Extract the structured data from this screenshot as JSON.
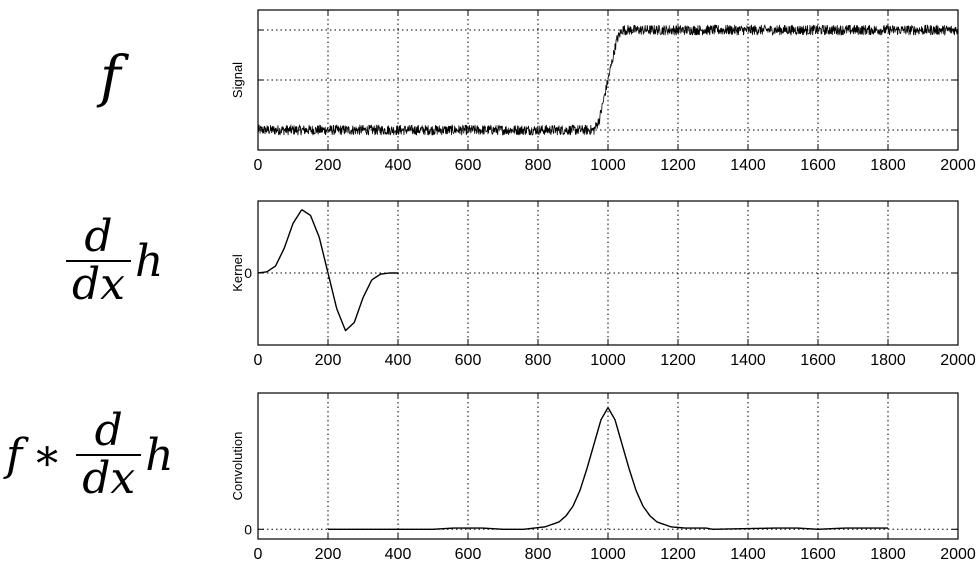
{
  "formulas": {
    "f1": {
      "main": "f"
    },
    "f2": {
      "num": "d",
      "den": "dx",
      "tail": "h"
    },
    "f3": {
      "head": "f",
      "op": "∗",
      "num": "d",
      "den": "dx",
      "tail": "h"
    }
  },
  "chart_data": [
    {
      "type": "line",
      "title": "",
      "xlabel": "",
      "ylabel": "Signal",
      "xlim": [
        0,
        2000
      ],
      "ylim": [
        -0.2,
        1.2
      ],
      "xticks": [
        0,
        200,
        400,
        600,
        800,
        1000,
        1200,
        1400,
        1600,
        1800,
        2000
      ],
      "xtick_labels": [
        "0",
        "200",
        "400",
        "600",
        "800",
        "1000",
        "1200",
        "1400",
        "1600",
        "1800",
        "2000"
      ],
      "yticks": [
        0,
        0.5,
        1
      ],
      "ytick_labels": [
        "",
        "",
        ""
      ],
      "grid": true,
      "x": [
        0,
        250,
        500,
        750,
        960,
        975,
        1000,
        1025,
        1040,
        1250,
        1500,
        1750,
        2000
      ],
      "values": [
        0,
        0,
        0,
        0,
        0,
        0.1,
        0.5,
        0.9,
        1.0,
        1.0,
        1.0,
        1.0,
        1.0
      ],
      "noise_amplitude": 0.05
    },
    {
      "type": "line",
      "title": "",
      "xlabel": "",
      "ylabel": "Kernel",
      "xlim": [
        0,
        2000
      ],
      "ylim": [
        -1.25,
        1.25
      ],
      "xticks": [
        0,
        200,
        400,
        600,
        800,
        1000,
        1200,
        1400,
        1600,
        1800,
        2000
      ],
      "xtick_labels": [
        "0",
        "200",
        "400",
        "600",
        "800",
        "1000",
        "1200",
        "1400",
        "1600",
        "1800",
        "2000"
      ],
      "yticks": [
        0
      ],
      "ytick_labels": [
        "0"
      ],
      "grid": true,
      "x": [
        0,
        25,
        50,
        75,
        100,
        125,
        150,
        175,
        200,
        225,
        250,
        275,
        300,
        325,
        350,
        375,
        400
      ],
      "values": [
        0,
        0.02,
        0.12,
        0.43,
        0.86,
        1.1,
        1.0,
        0.62,
        0,
        -0.62,
        -1.0,
        -0.86,
        -0.43,
        -0.12,
        -0.02,
        0,
        0
      ]
    },
    {
      "type": "line",
      "title": "",
      "xlabel": "",
      "ylabel": "Convolution",
      "xlim": [
        0,
        2000
      ],
      "ylim": [
        -0.08,
        1.12
      ],
      "xticks": [
        0,
        200,
        400,
        600,
        800,
        1000,
        1200,
        1400,
        1600,
        1800,
        2000
      ],
      "xtick_labels": [
        "0",
        "200",
        "400",
        "600",
        "800",
        "1000",
        "1200",
        "1400",
        "1600",
        "1800",
        "2000"
      ],
      "yticks": [
        0
      ],
      "ytick_labels": [
        "0"
      ],
      "grid": true,
      "x": [
        200,
        500,
        560,
        640,
        700,
        760,
        820,
        860,
        880,
        900,
        920,
        940,
        960,
        980,
        1000,
        1020,
        1040,
        1060,
        1080,
        1100,
        1120,
        1140,
        1180,
        1220,
        1280,
        1300,
        1480,
        1540,
        1600,
        1680,
        1800
      ],
      "values": [
        0,
        0,
        0.01,
        0.01,
        0,
        0,
        0.02,
        0.06,
        0.11,
        0.19,
        0.32,
        0.5,
        0.7,
        0.9,
        1.0,
        0.9,
        0.7,
        0.5,
        0.32,
        0.19,
        0.11,
        0.06,
        0.02,
        0.01,
        0.01,
        0,
        0.01,
        0.01,
        0,
        0.01,
        0.01
      ]
    }
  ]
}
